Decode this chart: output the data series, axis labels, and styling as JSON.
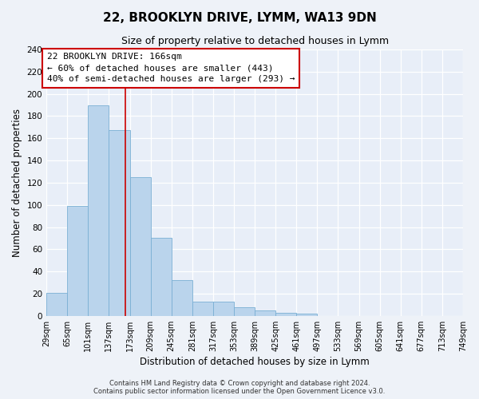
{
  "title": "22, BROOKLYN DRIVE, LYMM, WA13 9DN",
  "subtitle": "Size of property relative to detached houses in Lymm",
  "xlabel": "Distribution of detached houses by size in Lymm",
  "ylabel": "Number of detached properties",
  "bar_left_edges": [
    29,
    65,
    101,
    137,
    173,
    209,
    245,
    281,
    317,
    353,
    389,
    425,
    461,
    497,
    533,
    569,
    605,
    641,
    677,
    713
  ],
  "bar_heights": [
    21,
    99,
    190,
    167,
    125,
    70,
    32,
    13,
    13,
    8,
    5,
    3,
    2,
    0,
    0,
    0,
    0,
    0,
    0,
    0
  ],
  "bin_width": 36,
  "bar_color": "#bad4ec",
  "bar_edge_color": "#7aafd4",
  "property_line_x": 166,
  "property_line_color": "#cc0000",
  "annotation_box_color": "#cc0000",
  "annotation_text_line1": "22 BROOKLYN DRIVE: 166sqm",
  "annotation_text_line2": "← 60% of detached houses are smaller (443)",
  "annotation_text_line3": "40% of semi-detached houses are larger (293) →",
  "tick_labels": [
    "29sqm",
    "65sqm",
    "101sqm",
    "137sqm",
    "173sqm",
    "209sqm",
    "245sqm",
    "281sqm",
    "317sqm",
    "353sqm",
    "389sqm",
    "425sqm",
    "461sqm",
    "497sqm",
    "533sqm",
    "569sqm",
    "605sqm",
    "641sqm",
    "677sqm",
    "713sqm",
    "749sqm"
  ],
  "ylim": [
    0,
    240
  ],
  "yticks": [
    0,
    20,
    40,
    60,
    80,
    100,
    120,
    140,
    160,
    180,
    200,
    220,
    240
  ],
  "footer_line1": "Contains HM Land Registry data © Crown copyright and database right 2024.",
  "footer_line2": "Contains public sector information licensed under the Open Government Licence v3.0.",
  "bg_color": "#eef2f8",
  "plot_bg_color": "#e8eef8",
  "grid_color": "#ffffff",
  "title_fontsize": 11,
  "subtitle_fontsize": 9,
  "axis_label_fontsize": 8.5,
  "tick_fontsize": 7,
  "annotation_fontsize": 8,
  "footer_fontsize": 6
}
